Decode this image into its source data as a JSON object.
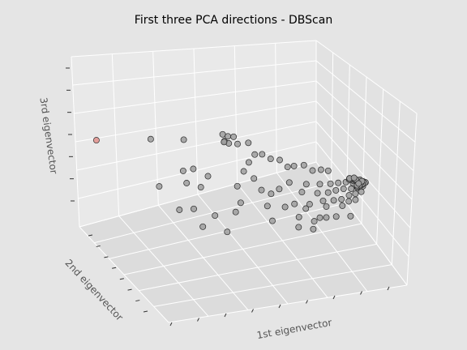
{
  "chart_data": {
    "type": "scatter",
    "projection": "3d",
    "title": "First three PCA directions - DBScan",
    "xlabel": "1st eigenvector",
    "ylabel": "2nd eigenvector",
    "zlabel": "3rd eigenvector",
    "grid": true,
    "tick_labels_visible": false,
    "colors": {
      "noise": "#e08a85",
      "cluster": "#9e9e9e",
      "edge": "#2b2b2b"
    },
    "series": [
      {
        "cluster": "noise",
        "color": "#e08a85",
        "points": [
          [
            -0.98,
            0.93,
            0.7
          ]
        ]
      },
      {
        "cluster": "main",
        "color": "#9e9e9e",
        "points": [
          [
            -0.6,
            0.7,
            0.62
          ],
          [
            -0.4,
            0.5,
            0.62
          ],
          [
            -0.24,
            0.14,
            0.83
          ],
          [
            -0.22,
            0.14,
            0.72
          ],
          [
            -0.2,
            0.1,
            0.7
          ],
          [
            -0.18,
            0.14,
            0.78
          ],
          [
            -0.16,
            0.08,
            0.8
          ],
          [
            -0.18,
            0.2,
            0.66
          ],
          [
            -0.1,
            0.1,
            0.66
          ],
          [
            -0.05,
            0.0,
            0.72
          ],
          [
            -0.48,
            0.4,
            0.22
          ],
          [
            -0.4,
            0.36,
            0.24
          ],
          [
            -0.52,
            0.3,
            0.1
          ],
          [
            -0.44,
            0.2,
            0.06
          ],
          [
            -0.36,
            0.2,
            0.2
          ],
          [
            -0.66,
            0.5,
            0.0
          ],
          [
            -0.6,
            0.3,
            -0.28
          ],
          [
            -0.52,
            0.2,
            -0.24
          ],
          [
            -0.5,
            0.1,
            -0.46
          ],
          [
            -0.4,
            0.05,
            -0.3
          ],
          [
            -0.3,
            0.0,
            -0.55
          ],
          [
            -0.28,
            -0.1,
            -0.2
          ],
          [
            -0.22,
            -0.1,
            -0.08
          ],
          [
            -0.18,
            0.0,
            0.1
          ],
          [
            -0.15,
            -0.06,
            0.35
          ],
          [
            -0.12,
            -0.1,
            0.5
          ],
          [
            -0.1,
            -0.15,
            0.28
          ],
          [
            -0.05,
            -0.2,
            0.12
          ],
          [
            -0.02,
            -0.25,
            -0.1
          ],
          [
            0.0,
            -0.3,
            -0.3
          ],
          [
            0.02,
            -0.26,
            0.08
          ],
          [
            0.05,
            -0.35,
            0.2
          ],
          [
            0.08,
            -0.4,
            -0.05
          ],
          [
            0.1,
            -0.45,
            0.35
          ],
          [
            0.12,
            -0.5,
            0.05
          ],
          [
            0.15,
            -0.52,
            -0.3
          ],
          [
            0.18,
            -0.55,
            0.25
          ],
          [
            0.2,
            -0.6,
            0.4
          ],
          [
            0.22,
            -0.62,
            0.1
          ],
          [
            0.25,
            -0.65,
            -0.15
          ],
          [
            0.28,
            -0.68,
            0.3
          ],
          [
            0.3,
            -0.7,
            0.45
          ],
          [
            0.32,
            -0.72,
            0.2
          ],
          [
            0.34,
            -0.74,
            -0.05
          ],
          [
            0.36,
            -0.76,
            0.35
          ],
          [
            0.38,
            -0.78,
            0.5
          ],
          [
            0.4,
            -0.8,
            0.25
          ],
          [
            0.42,
            -0.82,
            0.42
          ],
          [
            0.44,
            -0.84,
            0.55
          ],
          [
            0.46,
            -0.86,
            0.3
          ],
          [
            0.48,
            -0.88,
            0.48
          ],
          [
            0.5,
            -0.9,
            0.6
          ],
          [
            0.52,
            -0.92,
            0.4
          ],
          [
            0.54,
            -0.94,
            0.52
          ],
          [
            0.56,
            -0.95,
            0.62
          ],
          [
            0.58,
            -0.96,
            0.45
          ],
          [
            0.6,
            -0.97,
            0.56
          ],
          [
            0.62,
            -0.98,
            0.64
          ],
          [
            0.64,
            -0.99,
            0.5
          ],
          [
            0.66,
            -1.0,
            0.6
          ],
          [
            0.2,
            -0.4,
            0.55
          ],
          [
            0.25,
            -0.5,
            0.62
          ],
          [
            0.3,
            -0.58,
            0.58
          ],
          [
            0.35,
            -0.66,
            0.64
          ],
          [
            0.4,
            -0.72,
            0.66
          ],
          [
            0.1,
            -0.3,
            0.6
          ],
          [
            0.15,
            -0.36,
            0.52
          ],
          [
            0.05,
            -0.22,
            0.58
          ],
          [
            0.0,
            -0.15,
            0.62
          ],
          [
            -0.05,
            -0.1,
            0.6
          ],
          [
            0.45,
            -0.6,
            0.0
          ],
          [
            0.4,
            -0.55,
            -0.2
          ],
          [
            0.35,
            -0.5,
            -0.4
          ],
          [
            0.5,
            -0.7,
            -0.1
          ],
          [
            0.55,
            -0.75,
            0.1
          ],
          [
            0.3,
            -0.45,
            -0.1
          ],
          [
            0.25,
            -0.4,
            -0.25
          ],
          [
            0.6,
            -0.8,
            0.2
          ],
          [
            0.58,
            -0.85,
            0.0
          ],
          [
            0.62,
            -0.9,
            0.3
          ],
          [
            0.7,
            -1.0,
            0.66
          ],
          [
            0.68,
            -0.98,
            0.66
          ],
          [
            0.69,
            -0.99,
            0.64
          ],
          [
            0.67,
            -0.97,
            0.62
          ],
          [
            0.66,
            -0.96,
            0.58
          ]
        ]
      }
    ],
    "xlim": [
      -1,
      1
    ],
    "ylim": [
      -1,
      1
    ],
    "zlim": [
      -1,
      1
    ]
  }
}
